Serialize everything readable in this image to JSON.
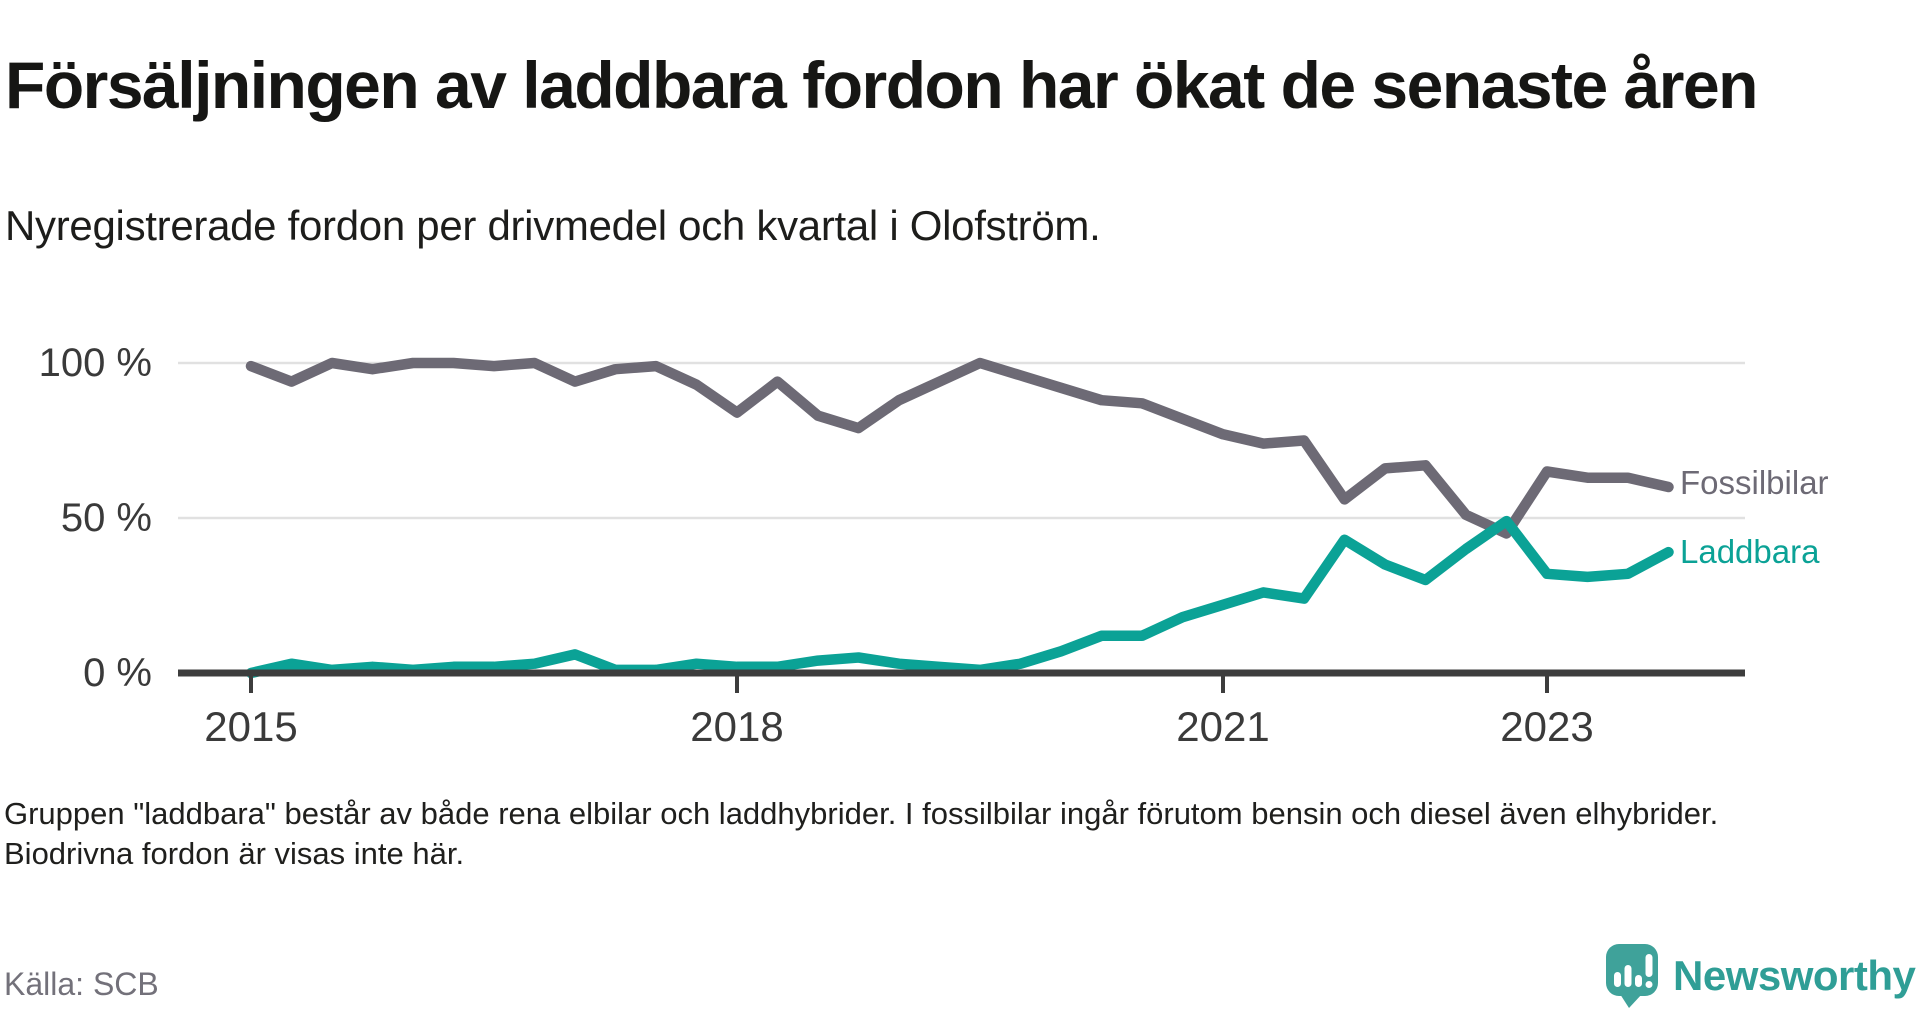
{
  "header": {
    "title": "Försäljningen av laddbara fordon har ökat de senaste åren",
    "subtitle": "Nyregistrerade fordon per drivmedel och kvartal i Olofström."
  },
  "chart_data": {
    "type": "line",
    "unit": "%",
    "ylim": [
      0,
      100
    ],
    "grid": "horizontal",
    "legend_position": "right-of-line-end",
    "y_ticks": [
      {
        "label": "100 %",
        "value": 100
      },
      {
        "label": "50 %",
        "value": 50
      },
      {
        "label": "0 %",
        "value": 0
      }
    ],
    "x_ticks": [
      {
        "label": "2015",
        "year": 2015
      },
      {
        "label": "2018",
        "year": 2018
      },
      {
        "label": "2021",
        "year": 2021
      },
      {
        "label": "2023",
        "year": 2023
      }
    ],
    "quarters": [
      "2015Q1",
      "2015Q2",
      "2015Q3",
      "2015Q4",
      "2016Q1",
      "2016Q2",
      "2016Q3",
      "2016Q4",
      "2017Q1",
      "2017Q2",
      "2017Q3",
      "2017Q4",
      "2018Q1",
      "2018Q2",
      "2018Q3",
      "2018Q4",
      "2019Q1",
      "2019Q2",
      "2019Q3",
      "2019Q4",
      "2020Q1",
      "2020Q2",
      "2020Q3",
      "2020Q4",
      "2021Q1",
      "2021Q2",
      "2021Q3",
      "2021Q4",
      "2022Q1",
      "2022Q2",
      "2022Q3",
      "2022Q4",
      "2023Q1",
      "2023Q2",
      "2023Q3",
      "2023Q4"
    ],
    "series": [
      {
        "name": "Fossilbilar",
        "color": "#6d6a75",
        "values": [
          99,
          94,
          100,
          98,
          100,
          100,
          99,
          100,
          94,
          98,
          99,
          93,
          84,
          94,
          83,
          79,
          88,
          94,
          100,
          96,
          92,
          88,
          87,
          82,
          77,
          74,
          75,
          56,
          66,
          67,
          51,
          45,
          65,
          63,
          63,
          60
        ]
      },
      {
        "name": "Laddbara",
        "color": "#0ba296",
        "values": [
          0,
          3,
          1,
          2,
          1,
          2,
          2,
          3,
          6,
          1,
          1,
          3,
          2,
          2,
          4,
          5,
          3,
          2,
          1,
          3,
          7,
          12,
          12,
          18,
          22,
          26,
          24,
          43,
          35,
          30,
          40,
          49,
          32,
          31,
          32,
          39
        ]
      }
    ]
  },
  "footnote": "Gruppen \"laddbara\" består av både rena elbilar och laddhybrider. I fossilbilar ingår förutom bensin och diesel även elhybrider. Biodrivna fordon är visas inte här.",
  "source": "Källa: SCB",
  "logo": {
    "text": "Newsworthy"
  }
}
